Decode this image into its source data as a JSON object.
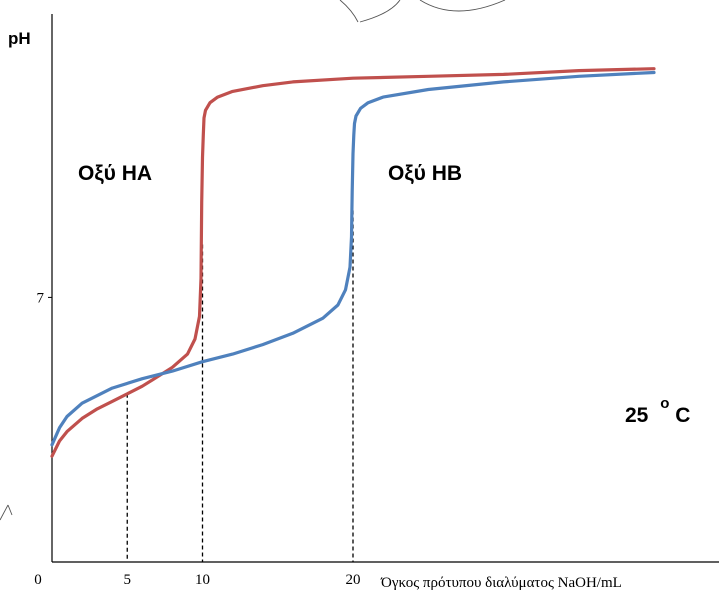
{
  "chart_data": {
    "type": "line",
    "ylabel": "pH",
    "xlabel": "Όγκος πρότυπου διαλύματος NaOH/mL",
    "xlim": [
      0,
      40
    ],
    "ylim": [
      0,
      14
    ],
    "x_ticks": [
      "0",
      "5",
      "10",
      "20"
    ],
    "x_tick_values": [
      0,
      5,
      10,
      20
    ],
    "y_ticks": [
      "7"
    ],
    "y_tick_values": [
      7
    ],
    "grid": false,
    "series": [
      {
        "name": "Οξύ ΗΑ",
        "color": "#c0504d",
        "x": [
          0,
          0.5,
          1,
          2,
          3,
          4,
          5,
          6,
          7,
          8,
          9,
          9.5,
          9.8,
          9.9,
          9.95,
          10,
          10.05,
          10.1,
          10.2,
          10.5,
          11,
          12,
          14,
          16,
          20,
          25,
          30,
          35,
          40
        ],
        "y": [
          2.8,
          3.2,
          3.45,
          3.8,
          4.05,
          4.25,
          4.45,
          4.65,
          4.9,
          5.15,
          5.5,
          5.9,
          6.5,
          7.5,
          9.5,
          10.7,
          11.3,
          11.75,
          11.95,
          12.15,
          12.3,
          12.45,
          12.6,
          12.7,
          12.8,
          12.85,
          12.9,
          13.0,
          13.05
        ]
      },
      {
        "name": "Οξύ ΗΒ",
        "color": "#4f81bd",
        "x": [
          0,
          0.5,
          1,
          2,
          4,
          6,
          8,
          10,
          12,
          14,
          16,
          18,
          19,
          19.5,
          19.8,
          19.9,
          19.95,
          20,
          20.05,
          20.1,
          20.2,
          20.5,
          21,
          22,
          25,
          30,
          35,
          40
        ],
        "y": [
          3.1,
          3.55,
          3.85,
          4.2,
          4.6,
          4.85,
          5.05,
          5.3,
          5.5,
          5.75,
          6.05,
          6.45,
          6.8,
          7.2,
          7.8,
          8.6,
          9.8,
          10.8,
          11.3,
          11.6,
          11.8,
          12.0,
          12.15,
          12.3,
          12.5,
          12.7,
          12.85,
          12.95
        ]
      }
    ],
    "guides": [
      {
        "x": 5,
        "series": 0
      },
      {
        "x": 10,
        "y": 8.4
      },
      {
        "x": 20,
        "y": 9.3
      }
    ],
    "annotations": {
      "label_a": "Οξύ ΗΑ",
      "label_b": "Οξύ ΗΒ",
      "temperature": "25",
      "temperature_sup": "o",
      "temperature_unit": "C"
    }
  }
}
